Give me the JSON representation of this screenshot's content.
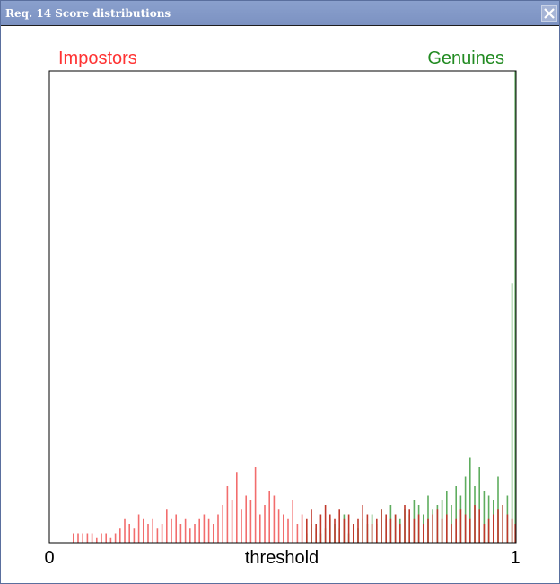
{
  "window": {
    "title": "Req. 14 Score distributions",
    "close_icon": "close-icon"
  },
  "chart_data": {
    "type": "bar",
    "xlabel": "threshold",
    "ylabel": "",
    "xlim": [
      0,
      1
    ],
    "x_tick_labels": [
      "0",
      "1"
    ],
    "grid": false,
    "legend": {
      "placement": "top",
      "entries": [
        {
          "name": "Impostors",
          "color": "#ff3333",
          "position": "top-left"
        },
        {
          "name": "Genuines",
          "color": "#228b22",
          "position": "top-right"
        }
      ]
    },
    "y_scale": "relative frequency (unlabeled)",
    "ylim": [
      0,
      100
    ],
    "series": [
      {
        "name": "Impostors",
        "color": "#f26d6d",
        "overlap_color": "#c0392b",
        "x": [
          0.05,
          0.06,
          0.07,
          0.08,
          0.09,
          0.1,
          0.11,
          0.12,
          0.13,
          0.14,
          0.15,
          0.16,
          0.17,
          0.18,
          0.19,
          0.2,
          0.21,
          0.22,
          0.23,
          0.24,
          0.25,
          0.26,
          0.27,
          0.28,
          0.29,
          0.3,
          0.31,
          0.32,
          0.33,
          0.34,
          0.35,
          0.36,
          0.37,
          0.38,
          0.39,
          0.4,
          0.41,
          0.42,
          0.43,
          0.44,
          0.45,
          0.46,
          0.47,
          0.48,
          0.49,
          0.5,
          0.51,
          0.52,
          0.53,
          0.54,
          0.55,
          0.56,
          0.57,
          0.58,
          0.59,
          0.6,
          0.61,
          0.62,
          0.63,
          0.64,
          0.65,
          0.66,
          0.67,
          0.68,
          0.69,
          0.7,
          0.71,
          0.72,
          0.73,
          0.74,
          0.75,
          0.76,
          0.77,
          0.78,
          0.79,
          0.8,
          0.81,
          0.82,
          0.83,
          0.84,
          0.85,
          0.86,
          0.87,
          0.88,
          0.89,
          0.9,
          0.91,
          0.92,
          0.93,
          0.94,
          0.95,
          0.96,
          0.97,
          0.98,
          0.99,
          1.0
        ],
        "values": [
          2,
          2,
          2,
          2,
          2,
          1,
          2,
          2,
          1,
          2,
          3,
          5,
          4,
          3,
          6,
          5,
          4,
          5,
          3,
          4,
          7,
          5,
          6,
          4,
          5,
          3,
          4,
          5,
          6,
          5,
          4,
          6,
          8,
          12,
          9,
          15,
          7,
          10,
          9,
          16,
          6,
          8,
          11,
          10,
          7,
          6,
          5,
          9,
          4,
          6,
          5,
          7,
          4,
          6,
          8,
          6,
          5,
          7,
          5,
          6,
          4,
          5,
          8,
          6,
          4,
          5,
          7,
          6,
          5,
          6,
          4,
          8,
          7,
          5,
          6,
          4,
          5,
          6,
          7,
          5,
          6,
          4,
          5,
          7,
          6,
          5,
          8,
          7,
          4,
          5,
          6,
          7,
          8,
          6,
          5,
          4
        ]
      },
      {
        "name": "Genuines",
        "color": "#5fad5f",
        "overlap_color": "#8b3a2b",
        "x": [
          0.55,
          0.56,
          0.57,
          0.58,
          0.59,
          0.6,
          0.61,
          0.62,
          0.63,
          0.64,
          0.65,
          0.66,
          0.67,
          0.68,
          0.69,
          0.7,
          0.71,
          0.72,
          0.73,
          0.74,
          0.75,
          0.76,
          0.77,
          0.78,
          0.79,
          0.8,
          0.81,
          0.82,
          0.83,
          0.84,
          0.85,
          0.86,
          0.87,
          0.88,
          0.89,
          0.9,
          0.91,
          0.92,
          0.93,
          0.94,
          0.95,
          0.96,
          0.97,
          0.98,
          0.99,
          1.0
        ],
        "values": [
          2,
          4,
          3,
          2,
          3,
          5,
          4,
          3,
          6,
          2,
          4,
          3,
          5,
          4,
          6,
          4,
          7,
          5,
          8,
          6,
          5,
          7,
          6,
          9,
          8,
          6,
          10,
          7,
          8,
          9,
          11,
          8,
          12,
          10,
          14,
          18,
          12,
          16,
          11,
          10,
          9,
          14,
          8,
          10,
          55,
          100
        ]
      }
    ]
  }
}
